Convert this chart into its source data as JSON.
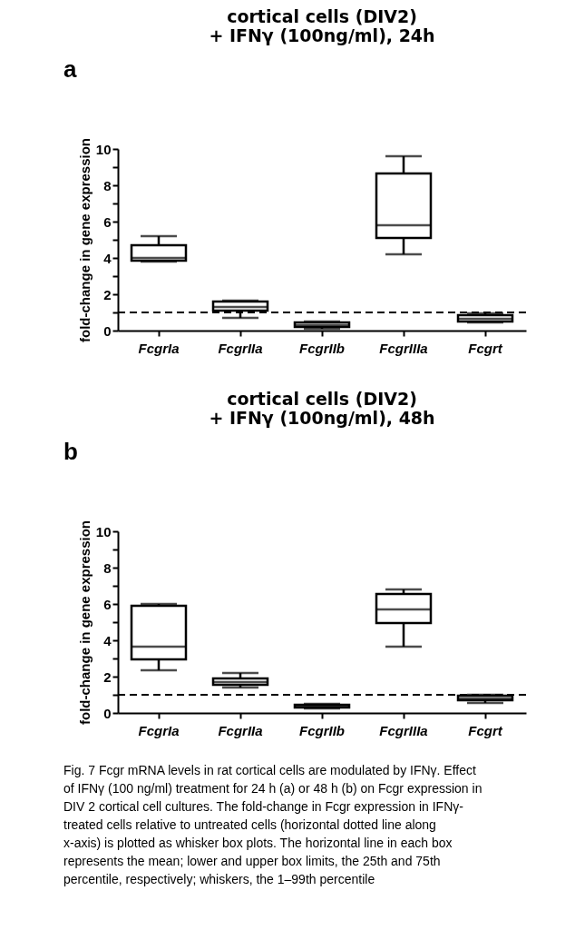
{
  "chart_data": [
    {
      "type": "box",
      "title": "cortical cells (DIV2)\n+ IFNγ (100ng/ml), 24h",
      "ylabel": "fold-change in gene expression",
      "annotations": [
        "a"
      ],
      "categories": [
        "FcgrIa",
        "FcgrIIa",
        "FcgrIIb",
        "FcgrIIIa",
        "Fcgrt"
      ],
      "boxes": [
        {
          "low": 3.8,
          "q1": 3.85,
          "median": 4.0,
          "q3": 4.7,
          "high": 5.2
        },
        {
          "low": 0.7,
          "q1": 1.1,
          "median": 1.3,
          "q3": 1.6,
          "high": 1.65
        },
        {
          "low": 0.1,
          "q1": 0.2,
          "median": 0.3,
          "q3": 0.45,
          "high": 0.5
        },
        {
          "low": 4.2,
          "q1": 5.1,
          "median": 5.8,
          "q3": 8.65,
          "high": 9.6
        },
        {
          "low": 0.45,
          "q1": 0.5,
          "median": 0.65,
          "q3": 0.85,
          "high": 0.95
        }
      ],
      "ylim": [
        0,
        10
      ],
      "yticks": [
        0,
        {
          "value": 1,
          "label": null
        },
        2,
        {
          "value": 3,
          "label": null
        },
        4,
        {
          "value": 5,
          "label": null
        },
        6,
        {
          "value": 7,
          "label": null
        },
        8,
        {
          "value": 9,
          "label": null
        },
        10
      ],
      "ref_lines": [
        {
          "axis": "y",
          "value": 1,
          "line_style": "dashed",
          "color": "#000000"
        }
      ],
      "grid": false
    },
    {
      "type": "box",
      "title": "cortical cells (DIV2)\n+ IFNγ (100ng/ml), 48h",
      "ylabel": "fold-change in gene expression",
      "annotations": [
        "b",
        "Fig. 7 Fcgr mRNA levels in rat cortical cells are modulated by IFNγ. Effect of IFNγ (100 ng/ml) treatment for 24 h (a) or 48 h (b) on Fcgr expression in DIV 2 cortical cell cultures. The fold-change in Fcgr expression in IFNγ-treated cells relative to untreated cells (horizontal dotted line along x-axis) is plotted as whisker box plots. The horizontal line in each box represents the mean; lower and upper box limits, the 25th and 75th percentile, respectively; whiskers, the 1–99th percentile"
      ],
      "categories": [
        "FcgrIa",
        "FcgrIIa",
        "FcgrIIb",
        "FcgrIIIa",
        "Fcgrt"
      ],
      "boxes": [
        {
          "low": 2.35,
          "q1": 2.95,
          "median": 3.65,
          "q3": 5.9,
          "high": 6.0
        },
        {
          "low": 1.4,
          "q1": 1.55,
          "median": 1.7,
          "q3": 1.9,
          "high": 2.2
        },
        {
          "low": 0.25,
          "q1": 0.3,
          "median": 0.35,
          "q3": 0.45,
          "high": 0.5
        },
        {
          "low": 3.65,
          "q1": 4.95,
          "median": 5.7,
          "q3": 6.55,
          "high": 6.8
        },
        {
          "low": 0.55,
          "q1": 0.7,
          "median": 0.8,
          "q3": 0.95,
          "high": 1.0
        }
      ],
      "ylim": [
        0,
        10
      ],
      "yticks": [
        0,
        {
          "value": 1,
          "label": null
        },
        2,
        {
          "value": 3,
          "label": null
        },
        4,
        {
          "value": 5,
          "label": null
        },
        6,
        {
          "value": 7,
          "label": null
        },
        8,
        {
          "value": 9,
          "label": null
        },
        10
      ],
      "ref_lines": [
        {
          "axis": "y",
          "value": 1,
          "line_style": "dashed",
          "color": "#000000"
        }
      ],
      "grid": false
    }
  ]
}
